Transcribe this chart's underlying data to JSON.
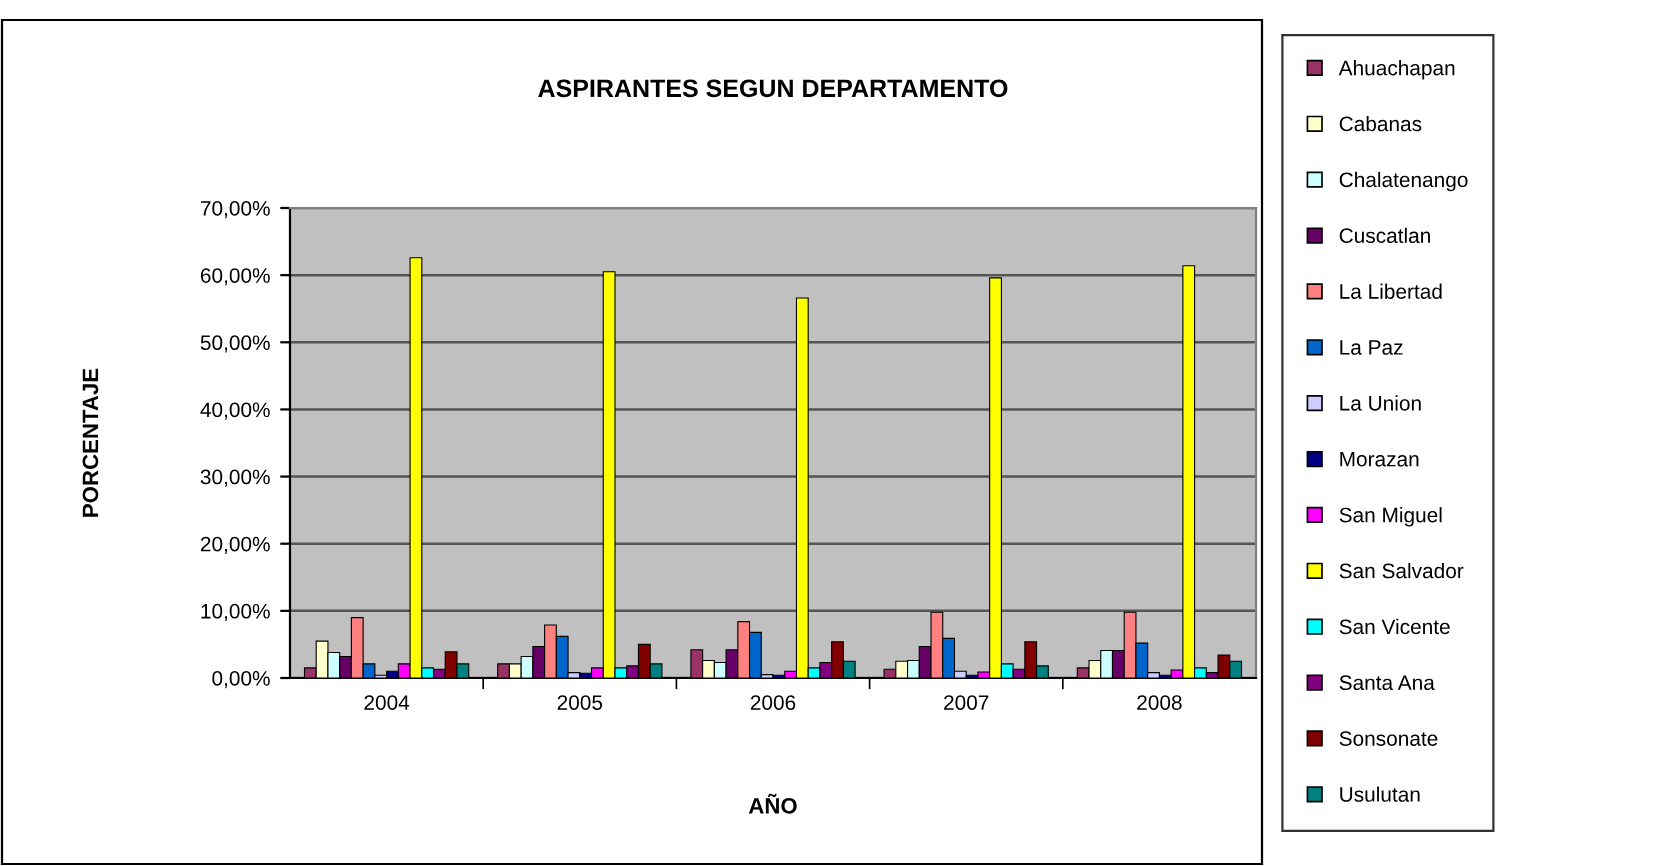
{
  "chart_data": {
    "type": "bar",
    "title": "ASPIRANTES SEGUN DEPARTAMENTO",
    "xlabel": "AÑO",
    "ylabel": "PORCENTAJE",
    "categories": [
      "2004",
      "2005",
      "2006",
      "2007",
      "2008"
    ],
    "ylim": [
      0,
      70
    ],
    "yticks": [
      {
        "value": 0,
        "label": "0,00%"
      },
      {
        "value": 10,
        "label": "10,00%"
      },
      {
        "value": 20,
        "label": "20,00%"
      },
      {
        "value": 30,
        "label": "30,00%"
      },
      {
        "value": 40,
        "label": "40,00%"
      },
      {
        "value": 50,
        "label": "50,00%"
      },
      {
        "value": 60,
        "label": "60,00%"
      },
      {
        "value": 70,
        "label": "70,00%"
      }
    ],
    "grid": "y",
    "legend": "right",
    "series": [
      {
        "name": "Ahuachapan",
        "color": "#993366",
        "values": [
          1.5,
          2.1,
          4.2,
          1.3,
          1.5
        ]
      },
      {
        "name": "Cabanas",
        "color": "#ffffcc",
        "values": [
          5.5,
          2.1,
          2.6,
          2.5,
          2.6
        ]
      },
      {
        "name": "Chalatenango",
        "color": "#ccffff",
        "values": [
          3.8,
          3.2,
          2.3,
          2.6,
          4.1
        ]
      },
      {
        "name": "Cuscatlan",
        "color": "#660066",
        "values": [
          3.2,
          4.7,
          4.2,
          4.7,
          4.1
        ]
      },
      {
        "name": "La Libertad",
        "color": "#ff8080",
        "values": [
          9.0,
          7.9,
          8.4,
          9.8,
          9.8
        ]
      },
      {
        "name": "La Paz",
        "color": "#0066cc",
        "values": [
          2.1,
          6.2,
          6.8,
          5.9,
          5.2
        ]
      },
      {
        "name": "La Union",
        "color": "#ccccff",
        "values": [
          0.4,
          0.8,
          0.5,
          1.0,
          0.8
        ]
      },
      {
        "name": "Morazan",
        "color": "#000080",
        "values": [
          1.0,
          0.7,
          0.4,
          0.4,
          0.4
        ]
      },
      {
        "name": "San Miguel",
        "color": "#ff00ff",
        "values": [
          2.1,
          1.5,
          1.0,
          0.9,
          1.2
        ]
      },
      {
        "name": "San Salvador",
        "color": "#ffff00",
        "values": [
          62.6,
          60.5,
          56.6,
          59.6,
          61.4
        ]
      },
      {
        "name": "San Vicente",
        "color": "#00ffff",
        "values": [
          1.5,
          1.5,
          1.5,
          2.1,
          1.5
        ]
      },
      {
        "name": "Santa Ana",
        "color": "#800080",
        "values": [
          1.3,
          1.8,
          2.3,
          1.3,
          0.8
        ]
      },
      {
        "name": "Sonsonate",
        "color": "#800000",
        "values": [
          3.9,
          5.0,
          5.4,
          5.4,
          3.4
        ]
      },
      {
        "name": "Usulutan",
        "color": "#008080",
        "values": [
          2.1,
          2.1,
          2.5,
          1.8,
          2.5
        ]
      }
    ]
  }
}
